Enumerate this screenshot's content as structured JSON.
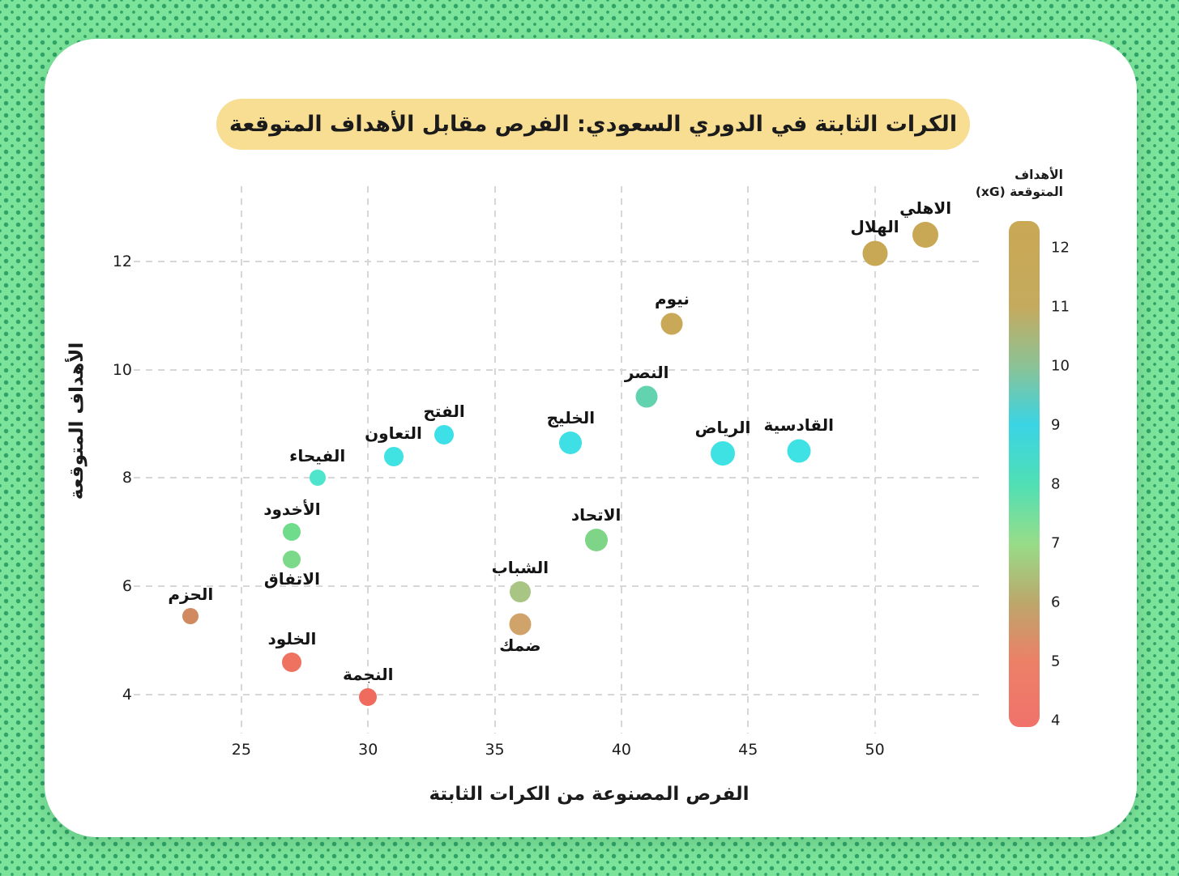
{
  "page": {
    "background_color": "#7CE49A",
    "background_dot_color": "#2FA368",
    "card_color": "#FFFFFF"
  },
  "title": {
    "bold": "الكرات الثابتة",
    "rest": "في الدوري السعودي: الفرص مقابل الأهداف المتوقعة",
    "pill_color": "#F8DE93"
  },
  "chart_data": {
    "type": "scatter",
    "title": "الكرات الثابتة في الدوري السعودي: الفرص مقابل الأهداف المتوقعة",
    "xlabel": "الفرص المصنوعة من الكرات الثابتة",
    "ylabel": "الأهداف المتوقعة",
    "xlim": [
      20.75,
      54.33
    ],
    "ylim": [
      3.28,
      13.39
    ],
    "x_ticks": [
      25,
      30,
      35,
      40,
      45,
      50
    ],
    "y_ticks": [
      4,
      6,
      8,
      10,
      12
    ],
    "grid": true,
    "legend_position": "right",
    "colorbar": {
      "title_line1": "الأهداف",
      "title_line2": "المتوقعة (xG)",
      "vmin": 3.89,
      "vmax": 12.45,
      "ticks": [
        12,
        11,
        10,
        9,
        8,
        7,
        6,
        5,
        4
      ],
      "gradient_stops": [
        {
          "v": 12.45,
          "c": "#C9A855"
        },
        {
          "v": 11,
          "c": "#C5AA5E"
        },
        {
          "v": 10,
          "c": "#8CC295"
        },
        {
          "v": 9,
          "c": "#3AD4E5"
        },
        {
          "v": 8,
          "c": "#50DFB5"
        },
        {
          "v": 7,
          "c": "#97DD89"
        },
        {
          "v": 6,
          "c": "#BCA76B"
        },
        {
          "v": 5,
          "c": "#EC8067"
        },
        {
          "v": 3.89,
          "c": "#F0726B"
        }
      ]
    },
    "points": [
      {
        "team": "الاهلي",
        "x": 52,
        "y": 12.5,
        "r": 16,
        "color": "#C9A855",
        "label_pos": "above"
      },
      {
        "team": "الهلال",
        "x": 50,
        "y": 12.15,
        "r": 15.5,
        "color": "#C9A855",
        "label_pos": "above"
      },
      {
        "team": "نيوم",
        "x": 42,
        "y": 10.85,
        "r": 13.5,
        "color": "#C9A957",
        "label_pos": "above"
      },
      {
        "team": "النصر",
        "x": 41,
        "y": 9.5,
        "r": 13.5,
        "color": "#63D2AE",
        "label_pos": "above"
      },
      {
        "team": "الفتح",
        "x": 33,
        "y": 8.8,
        "r": 12,
        "color": "#3EE0E8",
        "label_pos": "above"
      },
      {
        "team": "الخليج",
        "x": 38,
        "y": 8.65,
        "r": 14,
        "color": "#3EE0E6",
        "label_pos": "above"
      },
      {
        "team": "القادسية",
        "x": 47,
        "y": 8.5,
        "r": 14.5,
        "color": "#3EE1E4",
        "label_pos": "above"
      },
      {
        "team": "الرياض",
        "x": 44,
        "y": 8.45,
        "r": 15,
        "color": "#3EE2E2",
        "label_pos": "above"
      },
      {
        "team": "التعاون",
        "x": 31,
        "y": 8.4,
        "r": 12,
        "color": "#40E2E2",
        "label_pos": "above"
      },
      {
        "team": "الفيحاء",
        "x": 28,
        "y": 8.0,
        "r": 10,
        "color": "#4FE5CC",
        "label_pos": "above"
      },
      {
        "team": "الأخدود",
        "x": 27,
        "y": 7.0,
        "r": 11,
        "color": "#6FDC8C",
        "label_pos": "above"
      },
      {
        "team": "الاتحاد",
        "x": 39,
        "y": 6.85,
        "r": 14,
        "color": "#7ED487",
        "label_pos": "above"
      },
      {
        "team": "الاتفاق",
        "x": 27,
        "y": 6.5,
        "r": 11,
        "color": "#7BD98A",
        "label_pos": "below"
      },
      {
        "team": "الشباب",
        "x": 36,
        "y": 5.9,
        "r": 13,
        "color": "#A9C584",
        "label_pos": "above"
      },
      {
        "team": "الحزم",
        "x": 23,
        "y": 5.45,
        "r": 10,
        "color": "#D18A60",
        "label_pos": "above"
      },
      {
        "team": "ضمك",
        "x": 36,
        "y": 5.3,
        "r": 13.5,
        "color": "#CFA36A",
        "label_pos": "below"
      },
      {
        "team": "الخلود",
        "x": 27,
        "y": 4.6,
        "r": 12,
        "color": "#EF7261",
        "label_pos": "above"
      },
      {
        "team": "النجمة",
        "x": 30,
        "y": 3.95,
        "r": 11,
        "color": "#EF6B5E",
        "label_pos": "above"
      }
    ]
  }
}
